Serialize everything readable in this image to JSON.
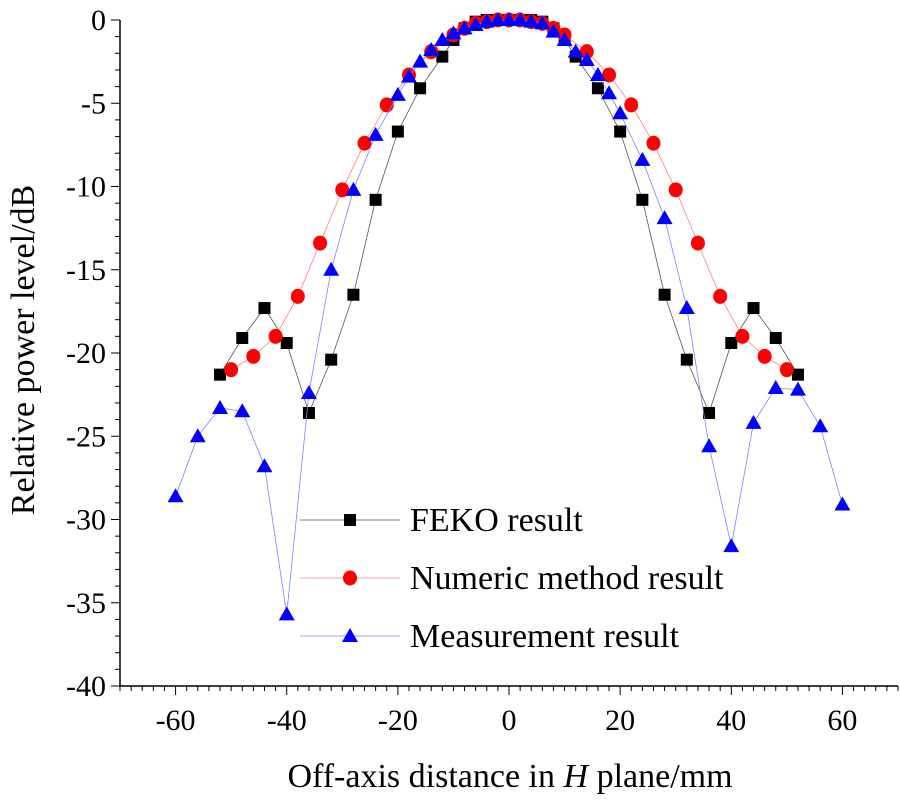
{
  "chart_data": {
    "type": "line",
    "title": "",
    "xlabel": "Off-axis distance in H plane/mm",
    "xlabel_parts": {
      "before": "Off-axis distance in ",
      "italic": "H",
      "after": " plane/mm"
    },
    "ylabel": "Relative power level/dB",
    "xlim": [
      -70,
      70
    ],
    "ylim": [
      -40,
      0
    ],
    "xticks": [
      -60,
      -40,
      -20,
      0,
      20,
      40,
      60
    ],
    "yticks": [
      0,
      -5,
      -10,
      -15,
      -20,
      -25,
      -30,
      -35,
      -40
    ],
    "xtick_labels": [
      "-60",
      "-40",
      "-20",
      "0",
      "20",
      "40",
      "60"
    ],
    "ytick_labels": [
      "0",
      "-5",
      "-10",
      "-15",
      "-20",
      "-25",
      "-30",
      "-35",
      "-40"
    ],
    "legend_position": "bottom-center",
    "series": [
      {
        "name": "FEKO result",
        "color": "#000000",
        "line_color": "#555555",
        "marker": "square",
        "x": [
          -52,
          -48,
          -44,
          -40,
          -36,
          -32,
          -28,
          -24,
          -20,
          -16,
          -12,
          -10,
          -8,
          -6,
          -4,
          -2,
          0,
          2,
          4,
          6,
          8,
          10,
          12,
          16,
          20,
          24,
          28,
          32,
          36,
          40,
          44,
          48,
          52
        ],
        "y": [
          -21.3,
          -19.1,
          -17.3,
          -19.4,
          -23.6,
          -20.4,
          -16.5,
          -10.8,
          -6.7,
          -4.1,
          -2.2,
          -1.2,
          -0.5,
          -0.1,
          0,
          0,
          0,
          0,
          0,
          -0.1,
          -0.5,
          -1.2,
          -2.2,
          -4.1,
          -6.7,
          -10.8,
          -16.5,
          -20.4,
          -23.6,
          -19.4,
          -17.3,
          -19.1,
          -21.3
        ]
      },
      {
        "name": "Numeric method result",
        "color": "#ff0000",
        "line_color": "#ff8080",
        "marker": "circle",
        "x": [
          -50,
          -46,
          -42,
          -38,
          -34,
          -30,
          -26,
          -22,
          -18,
          -14,
          -10,
          -8,
          -6,
          -4,
          -2,
          0,
          2,
          4,
          6,
          8,
          10,
          14,
          18,
          22,
          26,
          30,
          34,
          38,
          42,
          46,
          50
        ],
        "y": [
          -21.0,
          -20.2,
          -19.0,
          -16.6,
          -13.4,
          -10.2,
          -7.4,
          -5.1,
          -3.3,
          -1.9,
          -0.9,
          -0.5,
          -0.2,
          -0.1,
          0,
          0,
          0,
          -0.1,
          -0.2,
          -0.5,
          -0.9,
          -1.9,
          -3.3,
          -5.1,
          -7.4,
          -10.2,
          -13.4,
          -16.6,
          -19.0,
          -20.2,
          -21.0
        ]
      },
      {
        "name": "Measurement result",
        "color": "#0000ff",
        "line_color": "#8080ff",
        "marker": "triangle",
        "x": [
          -60,
          -56,
          -52,
          -48,
          -44,
          -40,
          -36,
          -32,
          -28,
          -24,
          -20,
          -18,
          -16,
          -14,
          -12,
          -10,
          -8,
          -6,
          -4,
          -2,
          0,
          2,
          4,
          6,
          8,
          10,
          12,
          14,
          16,
          18,
          20,
          24,
          28,
          32,
          36,
          40,
          44,
          48,
          52,
          56,
          60
        ],
        "y": [
          -28.6,
          -25.0,
          -23.3,
          -23.5,
          -26.8,
          -35.7,
          -22.4,
          -15.0,
          -10.2,
          -6.9,
          -4.5,
          -3.4,
          -2.5,
          -1.8,
          -1.2,
          -0.8,
          -0.5,
          -0.3,
          -0.1,
          0,
          0,
          0,
          -0.1,
          -0.2,
          -0.7,
          -1.2,
          -1.9,
          -2.4,
          -3.3,
          -4.4,
          -5.6,
          -8.4,
          -11.9,
          -17.3,
          -25.6,
          -31.6,
          -24.2,
          -22.1,
          -22.2,
          -24.4,
          -29.1
        ]
      }
    ]
  }
}
